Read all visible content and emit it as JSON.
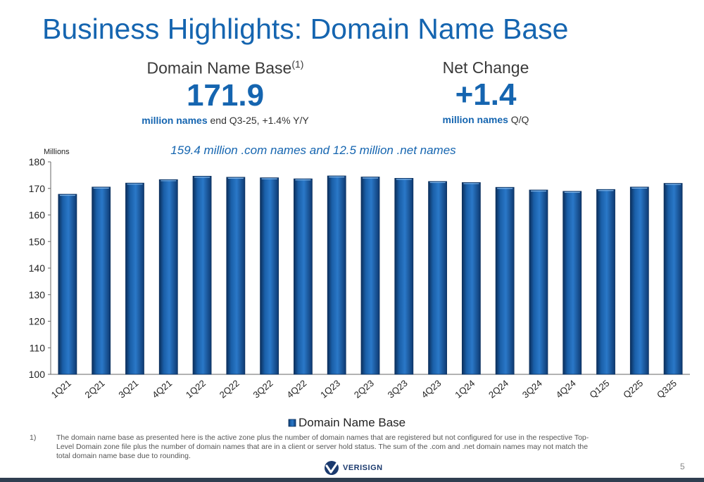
{
  "slide": {
    "title": "Business Highlights: Domain Name Base",
    "page_number": "5",
    "logo_text": "VERISIGN"
  },
  "stats": {
    "left": {
      "label": "Domain Name Base",
      "label_sup": "(1)",
      "value": "171.9",
      "sub_bold": "million names",
      "sub_rest": "end Q3-25, +1.4% Y/Y"
    },
    "right": {
      "label": "Net Change",
      "value": "+1.4",
      "sub_bold": "million names",
      "sub_rest": "Q/Q"
    }
  },
  "chart_note": "159.4 million .com names and 12.5 million .net names",
  "footnote": {
    "number": "1)",
    "text": "The domain name base as presented here is the active zone plus the number of domain names that are registered but not configured for use in the respective Top-Level Domain zone file plus the number of domain names that are in a client or server hold status.  The sum of the .com and .net domain names may not match the total domain name base due to rounding."
  },
  "colors": {
    "accent": "#1565b0",
    "bar": "#1a5fa8",
    "bar_dark": "#0b2f5c"
  },
  "chart_data": {
    "type": "bar",
    "ylabel": "Millions",
    "ylim": [
      100,
      180
    ],
    "yticks": [
      100,
      110,
      120,
      130,
      140,
      150,
      160,
      170,
      180
    ],
    "grid": false,
    "legend_position": "bottom",
    "categories": [
      "1Q21",
      "2Q21",
      "3Q21",
      "4Q21",
      "1Q22",
      "2Q22",
      "3Q22",
      "4Q22",
      "1Q23",
      "2Q23",
      "3Q23",
      "4Q23",
      "1Q24",
      "2Q24",
      "3Q24",
      "4Q24",
      "Q125",
      "Q225",
      "Q325"
    ],
    "series": [
      {
        "name": "Domain Name Base",
        "values": [
          167.8,
          170.5,
          172.0,
          173.3,
          174.6,
          174.2,
          174.0,
          173.6,
          174.7,
          174.3,
          173.8,
          172.6,
          172.2,
          170.4,
          169.4,
          168.9,
          169.6,
          170.5,
          171.9
        ]
      }
    ]
  }
}
